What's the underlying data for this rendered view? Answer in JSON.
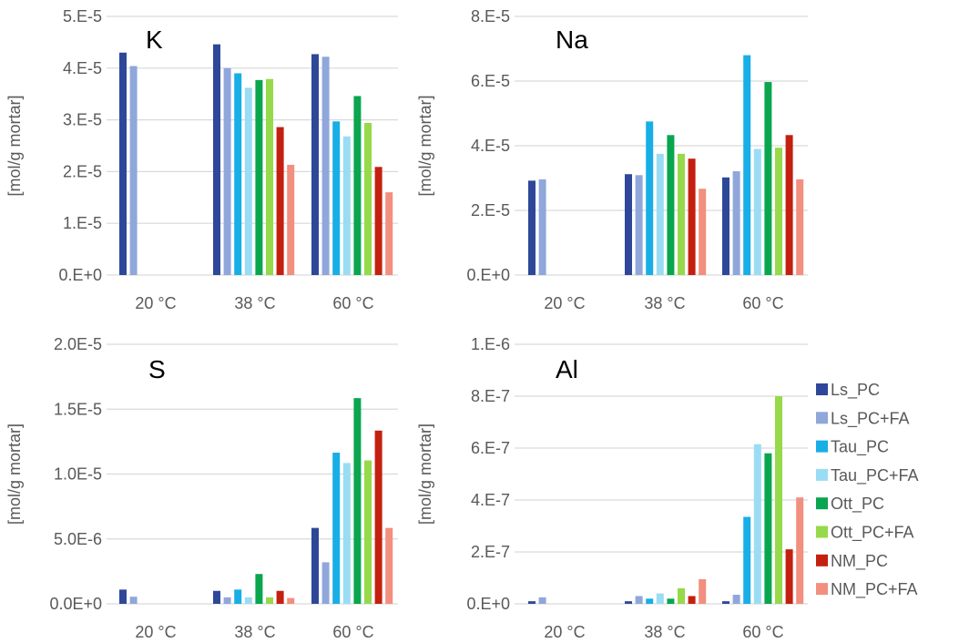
{
  "chart_data": [
    {
      "type": "bar",
      "title": "K",
      "ylabel": "[mol/g mortar]",
      "categories": [
        "20 °C",
        "38 °C",
        "60 °C"
      ],
      "ylim": [
        0,
        5e-05
      ],
      "yticks": [
        "0.E+0",
        "1.E-5",
        "2.E-5",
        "3.E-5",
        "4.E-5",
        "5.E-5"
      ],
      "grid": true,
      "series": [
        {
          "name": "Ls_PC",
          "values": [
            4.3e-05,
            4.46e-05,
            4.27e-05
          ]
        },
        {
          "name": "Ls_PC+FA",
          "values": [
            4.04e-05,
            4e-05,
            4.22e-05
          ]
        },
        {
          "name": "Tau_PC",
          "values": [
            null,
            3.9e-05,
            2.97e-05
          ]
        },
        {
          "name": "Tau_PC+FA",
          "values": [
            null,
            3.62e-05,
            2.68e-05
          ]
        },
        {
          "name": "Ott_PC",
          "values": [
            null,
            3.77e-05,
            3.46e-05
          ]
        },
        {
          "name": "Ott_PC+FA",
          "values": [
            null,
            3.79e-05,
            2.94e-05
          ]
        },
        {
          "name": "NM_PC",
          "values": [
            null,
            2.86e-05,
            2.09e-05
          ]
        },
        {
          "name": "NM_PC+FA",
          "values": [
            null,
            2.13e-05,
            1.6e-05
          ]
        }
      ]
    },
    {
      "type": "bar",
      "title": "Na",
      "ylabel": "[mol/g mortar]",
      "categories": [
        "20 °C",
        "38 °C",
        "60 °C"
      ],
      "ylim": [
        0,
        8e-05
      ],
      "yticks": [
        "0.E+0",
        "2.E-5",
        "4.E-5",
        "6.E-5",
        "8.E-5"
      ],
      "grid": true,
      "series": [
        {
          "name": "Ls_PC",
          "values": [
            2.92e-05,
            3.12e-05,
            3.02e-05
          ]
        },
        {
          "name": "Ls_PC+FA",
          "values": [
            2.96e-05,
            3.09e-05,
            3.21e-05
          ]
        },
        {
          "name": "Tau_PC",
          "values": [
            null,
            4.75e-05,
            6.8e-05
          ]
        },
        {
          "name": "Tau_PC+FA",
          "values": [
            null,
            3.75e-05,
            3.9e-05
          ]
        },
        {
          "name": "Ott_PC",
          "values": [
            null,
            4.33e-05,
            5.97e-05
          ]
        },
        {
          "name": "Ott_PC+FA",
          "values": [
            null,
            3.75e-05,
            3.94e-05
          ]
        },
        {
          "name": "NM_PC",
          "values": [
            null,
            3.6e-05,
            4.33e-05
          ]
        },
        {
          "name": "NM_PC+FA",
          "values": [
            null,
            2.67e-05,
            2.96e-05
          ]
        }
      ]
    },
    {
      "type": "bar",
      "title": "S",
      "ylabel": "[mol/g mortar]",
      "categories": [
        "20 °C",
        "38 °C",
        "60 °C"
      ],
      "ylim": [
        0,
        2e-05
      ],
      "yticks": [
        "0.0E+0",
        "5.0E-6",
        "1.0E-5",
        "1.5E-5",
        "2.0E-5"
      ],
      "grid": true,
      "series": [
        {
          "name": "Ls_PC",
          "values": [
            1.1e-06,
            1e-06,
            5.85e-06
          ]
        },
        {
          "name": "Ls_PC+FA",
          "values": [
            5.5e-07,
            5e-07,
            3.2e-06
          ]
        },
        {
          "name": "Tau_PC",
          "values": [
            null,
            1.1e-06,
            1.165e-05
          ]
        },
        {
          "name": "Tau_PC+FA",
          "values": [
            null,
            5e-07,
            1.085e-05
          ]
        },
        {
          "name": "Ott_PC",
          "values": [
            null,
            2.3e-06,
            1.585e-05
          ]
        },
        {
          "name": "Ott_PC+FA",
          "values": [
            null,
            5e-07,
            1.105e-05
          ]
        },
        {
          "name": "NM_PC",
          "values": [
            null,
            1e-06,
            1.335e-05
          ]
        },
        {
          "name": "NM_PC+FA",
          "values": [
            null,
            4.5e-07,
            5.85e-06
          ]
        }
      ]
    },
    {
      "type": "bar",
      "title": "Al",
      "ylabel": "[mol/g mortar]",
      "categories": [
        "20 °C",
        "38 °C",
        "60 °C"
      ],
      "ylim": [
        0,
        1e-06
      ],
      "yticks": [
        "0.E+0",
        "2.E-7",
        "4.E-7",
        "6.E-7",
        "8.E-7",
        "1.E-6"
      ],
      "grid": true,
      "series": [
        {
          "name": "Ls_PC",
          "values": [
            1e-08,
            1e-08,
            1e-08
          ]
        },
        {
          "name": "Ls_PC+FA",
          "values": [
            2.5e-08,
            3e-08,
            3.5e-08
          ]
        },
        {
          "name": "Tau_PC",
          "values": [
            null,
            2e-08,
            3.35e-07
          ]
        },
        {
          "name": "Tau_PC+FA",
          "values": [
            null,
            4e-08,
            6.15e-07
          ]
        },
        {
          "name": "Ott_PC",
          "values": [
            null,
            2e-08,
            5.8e-07
          ]
        },
        {
          "name": "Ott_PC+FA",
          "values": [
            null,
            6e-08,
            8e-07
          ]
        },
        {
          "name": "NM_PC",
          "values": [
            null,
            3e-08,
            2.1e-07
          ]
        },
        {
          "name": "NM_PC+FA",
          "values": [
            null,
            9.5e-08,
            4.1e-07
          ]
        }
      ]
    }
  ],
  "legend": {
    "placement": "right",
    "entries": [
      {
        "name": "Ls_PC",
        "color": "#2E4799"
      },
      {
        "name": "Ls_PC+FA",
        "color": "#8FA7DA"
      },
      {
        "name": "Tau_PC",
        "color": "#18AEE6"
      },
      {
        "name": "Tau_PC+FA",
        "color": "#9ADCF3"
      },
      {
        "name": "Ott_PC",
        "color": "#0AA54F"
      },
      {
        "name": "Ott_PC+FA",
        "color": "#96D94A"
      },
      {
        "name": "NM_PC",
        "color": "#C4200F"
      },
      {
        "name": "NM_PC+FA",
        "color": "#F28F7F"
      }
    ]
  }
}
